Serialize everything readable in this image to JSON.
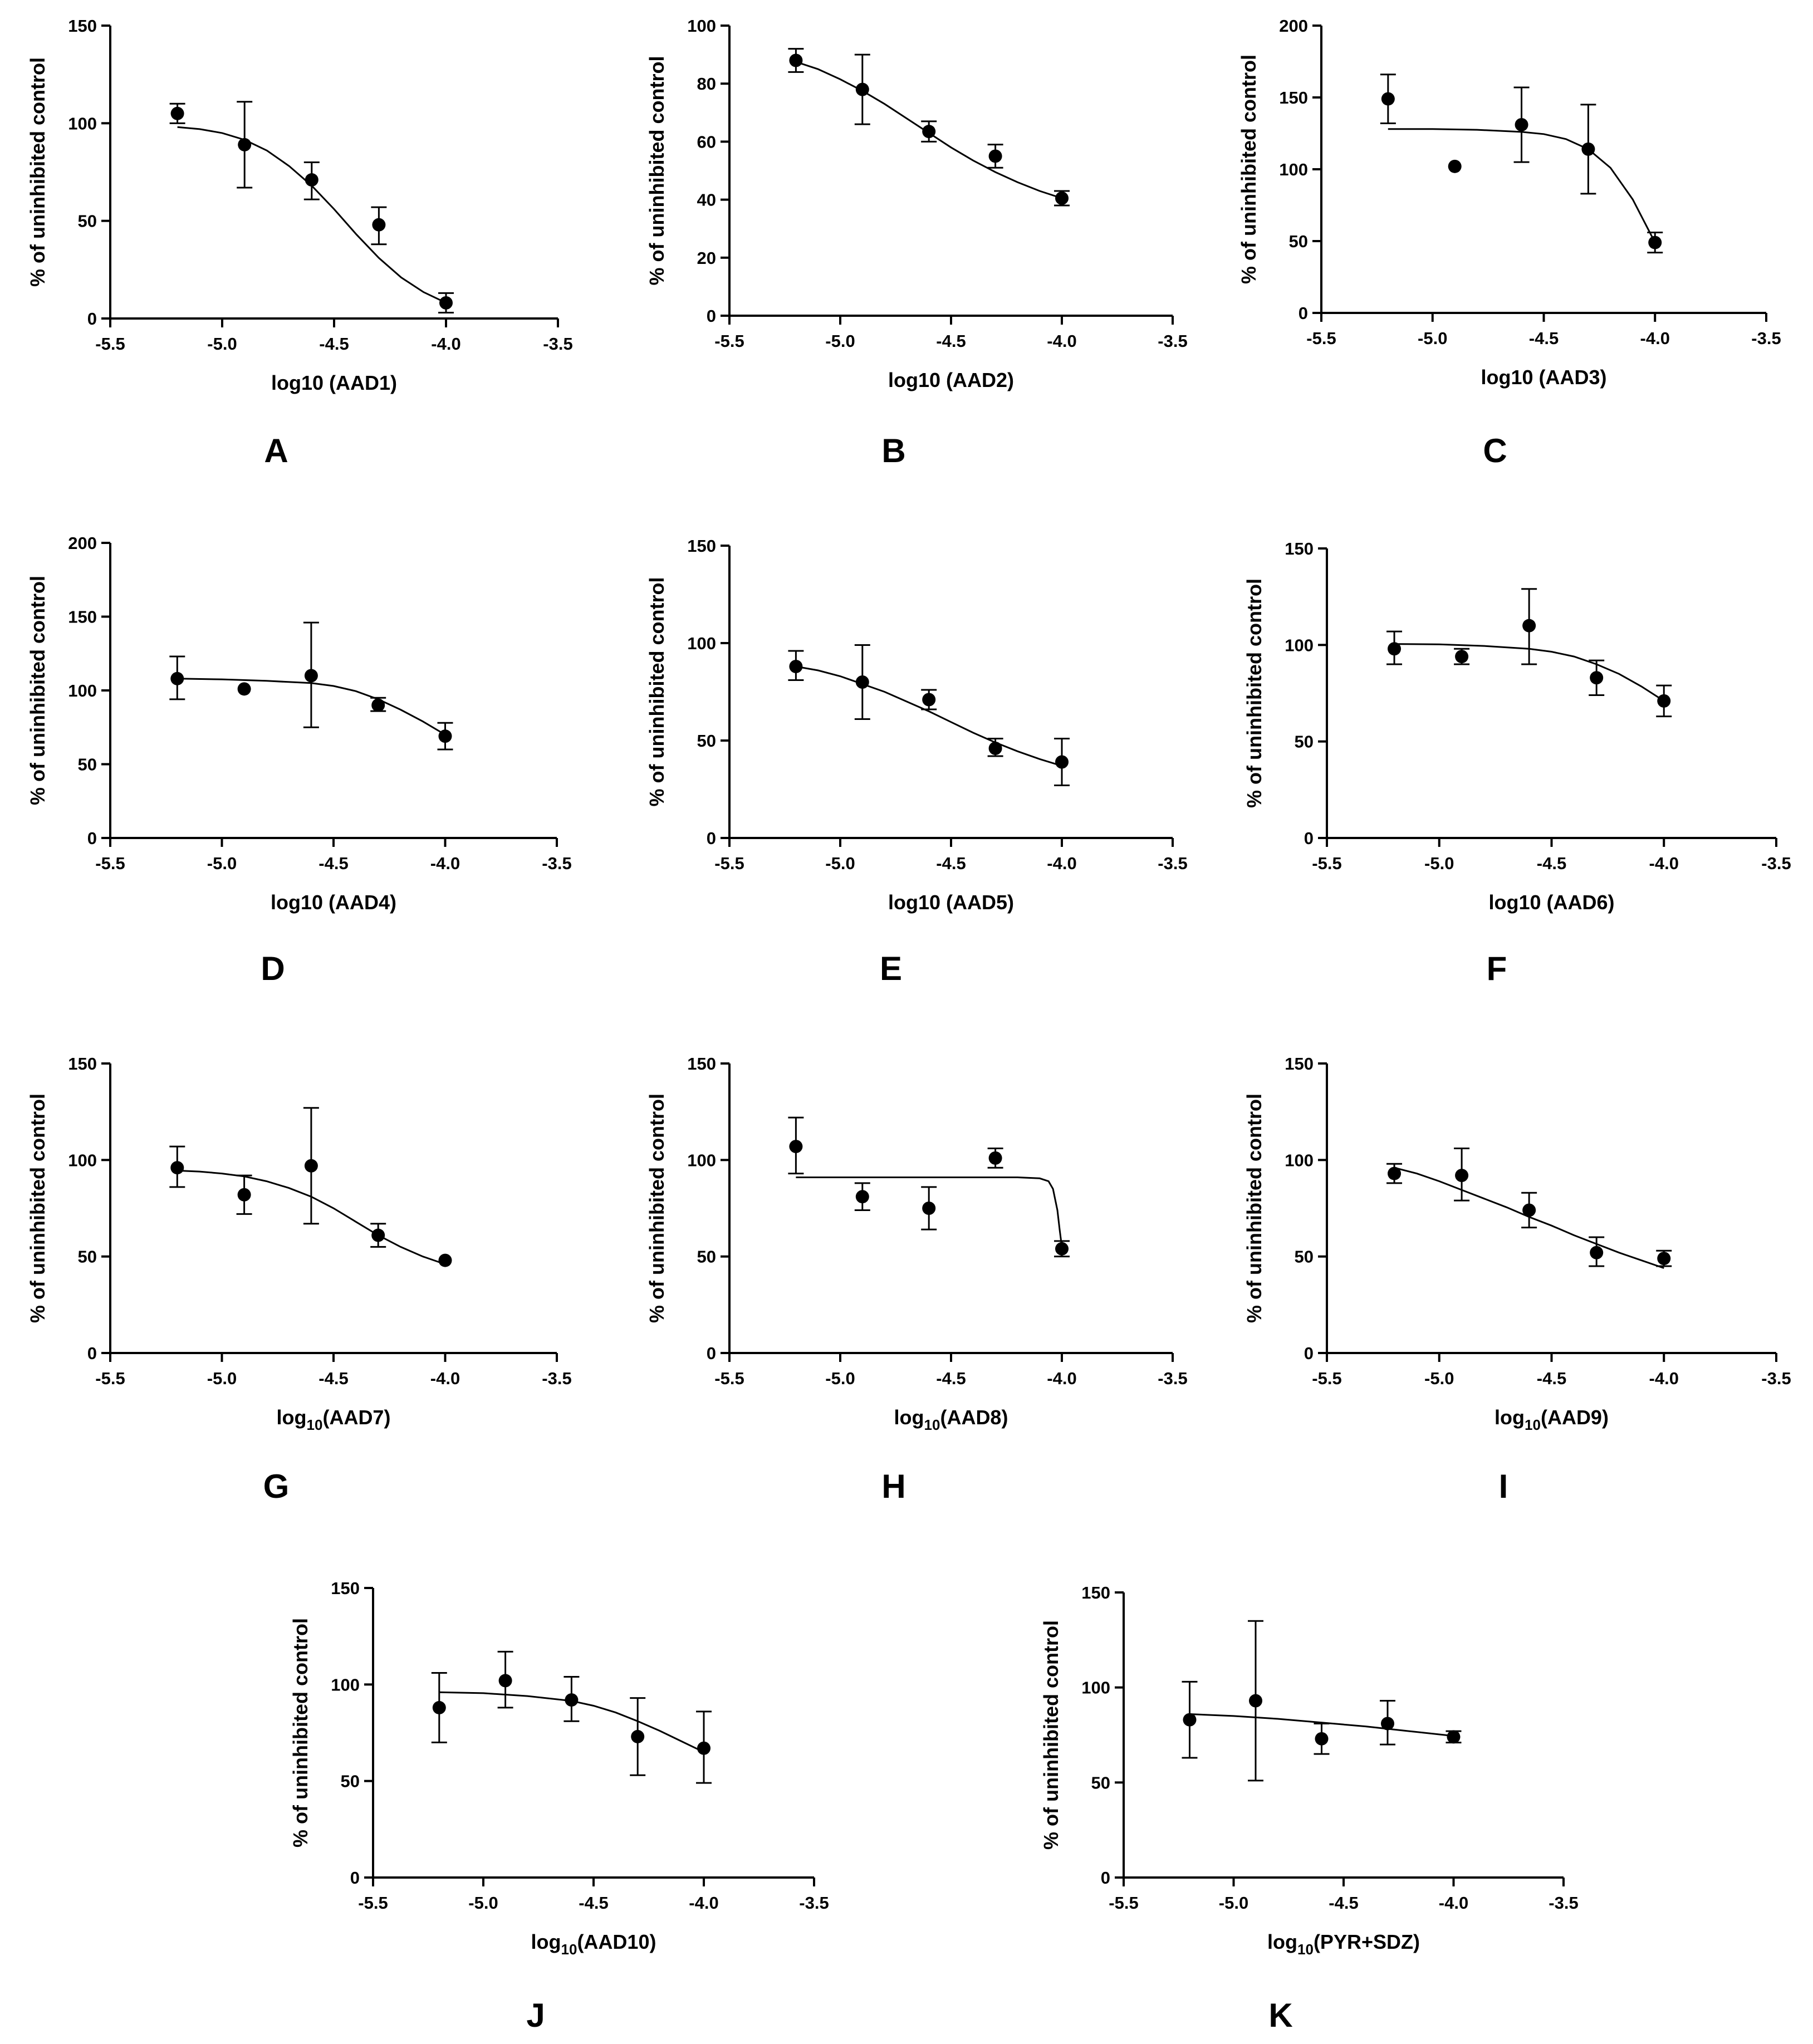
{
  "figure": {
    "panels": [
      "A",
      "B",
      "C",
      "D",
      "E",
      "F",
      "G",
      "H",
      "I",
      "J",
      "K"
    ]
  },
  "chart_data": [
    {
      "type": "scatter",
      "panel": "A",
      "fit": "sigmoidal dose-response curve",
      "xlabel": {
        "main": "log10 (AAD1)",
        "sub": "",
        "after": ""
      },
      "ylabel": "% of uninhibited control",
      "xlim": [
        -5.5,
        -3.5
      ],
      "xticks": [
        "-5.5",
        "-5.0",
        "-4.5",
        "-4.0",
        "-3.5"
      ],
      "ylim": [
        0,
        150
      ],
      "yticks": [
        "0",
        "50",
        "100",
        "150"
      ],
      "points": [
        {
          "x": -5.2,
          "y": 105,
          "lo": 100,
          "hi": 110
        },
        {
          "x": -4.9,
          "y": 89,
          "lo": 67,
          "hi": 111
        },
        {
          "x": -4.6,
          "y": 71,
          "lo": 61,
          "hi": 80
        },
        {
          "x": -4.3,
          "y": 48,
          "lo": 38,
          "hi": 57
        },
        {
          "x": -4.0,
          "y": 8,
          "lo": 3,
          "hi": 13
        }
      ],
      "curve": [
        [
          -5.2,
          98
        ],
        [
          -5.1,
          97
        ],
        [
          -5.0,
          95
        ],
        [
          -4.9,
          91.5
        ],
        [
          -4.8,
          86
        ],
        [
          -4.7,
          78
        ],
        [
          -4.6,
          68
        ],
        [
          -4.5,
          56
        ],
        [
          -4.4,
          43
        ],
        [
          -4.3,
          31
        ],
        [
          -4.2,
          21
        ],
        [
          -4.1,
          13.5
        ],
        [
          -4.0,
          8
        ]
      ]
    },
    {
      "type": "scatter",
      "panel": "B",
      "fit": "sigmoidal dose-response curve",
      "xlabel": {
        "main": "log10 (AAD2)",
        "sub": "",
        "after": ""
      },
      "ylabel": "% of uninhibited control",
      "xlim": [
        -5.5,
        -3.5
      ],
      "xticks": [
        "-5.5",
        "-5.0",
        "-4.5",
        "-4.0",
        "-3.5"
      ],
      "ylim": [
        0,
        100
      ],
      "yticks": [
        "0",
        "20",
        "40",
        "60",
        "80",
        "100"
      ],
      "points": [
        {
          "x": -5.2,
          "y": 88,
          "lo": 84,
          "hi": 92
        },
        {
          "x": -4.9,
          "y": 78,
          "lo": 66,
          "hi": 90
        },
        {
          "x": -4.6,
          "y": 63.5,
          "lo": 60,
          "hi": 67
        },
        {
          "x": -4.3,
          "y": 55,
          "lo": 51,
          "hi": 59
        },
        {
          "x": -4.0,
          "y": 40.5,
          "lo": 38,
          "hi": 43
        }
      ],
      "curve": [
        [
          -5.2,
          87.5
        ],
        [
          -5.1,
          85
        ],
        [
          -5.0,
          81.5
        ],
        [
          -4.9,
          77.5
        ],
        [
          -4.8,
          73
        ],
        [
          -4.7,
          68
        ],
        [
          -4.6,
          63
        ],
        [
          -4.5,
          58
        ],
        [
          -4.4,
          53.5
        ],
        [
          -4.3,
          49.5
        ],
        [
          -4.2,
          46
        ],
        [
          -4.1,
          43
        ],
        [
          -4.0,
          40.5
        ]
      ]
    },
    {
      "type": "scatter",
      "panel": "C",
      "fit": "sigmoidal dose-response curve",
      "xlabel": {
        "main": "log10 (AAD3)",
        "sub": "",
        "after": ""
      },
      "ylabel": "% of uninhibited control",
      "xlim": [
        -5.5,
        -3.5
      ],
      "xticks": [
        "-5.5",
        "-5.0",
        "-4.5",
        "-4.0",
        "-3.5"
      ],
      "ylim": [
        0,
        200
      ],
      "yticks": [
        "0",
        "50",
        "100",
        "150",
        "200"
      ],
      "points": [
        {
          "x": -5.2,
          "y": 149,
          "lo": 132,
          "hi": 166
        },
        {
          "x": -4.9,
          "y": 102,
          "lo": null,
          "hi": null
        },
        {
          "x": -4.6,
          "y": 131,
          "lo": 105,
          "hi": 157
        },
        {
          "x": -4.3,
          "y": 114,
          "lo": 83,
          "hi": 145
        },
        {
          "x": -4.0,
          "y": 49,
          "lo": 42,
          "hi": 56
        }
      ],
      "curve": [
        [
          -5.2,
          128
        ],
        [
          -5.0,
          128
        ],
        [
          -4.8,
          127.5
        ],
        [
          -4.6,
          126
        ],
        [
          -4.5,
          124.5
        ],
        [
          -4.4,
          121
        ],
        [
          -4.3,
          114
        ],
        [
          -4.2,
          101
        ],
        [
          -4.1,
          79
        ],
        [
          -4.05,
          64
        ],
        [
          -4.0,
          49
        ]
      ]
    },
    {
      "type": "scatter",
      "panel": "D",
      "fit": "sigmoidal dose-response curve",
      "xlabel": {
        "main": "log10 (AAD4)",
        "sub": "",
        "after": ""
      },
      "ylabel": "% of uninhibited control",
      "xlim": [
        -5.5,
        -3.5
      ],
      "xticks": [
        "-5.5",
        "-5.0",
        "-4.5",
        "-4.0",
        "-3.5"
      ],
      "ylim": [
        0,
        200
      ],
      "yticks": [
        "0",
        "50",
        "100",
        "150",
        "200"
      ],
      "points": [
        {
          "x": -5.2,
          "y": 108,
          "lo": 94,
          "hi": 123
        },
        {
          "x": -4.9,
          "y": 101,
          "lo": null,
          "hi": null
        },
        {
          "x": -4.6,
          "y": 110,
          "lo": 75,
          "hi": 146
        },
        {
          "x": -4.3,
          "y": 90,
          "lo": 86,
          "hi": 95
        },
        {
          "x": -4.0,
          "y": 69,
          "lo": 60,
          "hi": 78
        }
      ],
      "curve": [
        [
          -5.2,
          108
        ],
        [
          -5.0,
          107.5
        ],
        [
          -4.8,
          106.5
        ],
        [
          -4.6,
          105
        ],
        [
          -4.5,
          103
        ],
        [
          -4.4,
          99.5
        ],
        [
          -4.3,
          94
        ],
        [
          -4.2,
          87
        ],
        [
          -4.1,
          79
        ],
        [
          -4.0,
          70
        ]
      ]
    },
    {
      "type": "scatter",
      "panel": "E",
      "fit": "sigmoidal dose-response curve",
      "xlabel": {
        "main": "log10 (AAD5)",
        "sub": "",
        "after": ""
      },
      "ylabel": "% of uninhibited control",
      "xlim": [
        -5.5,
        -3.5
      ],
      "xticks": [
        "-5.5",
        "-5.0",
        "-4.5",
        "-4.0",
        "-3.5"
      ],
      "ylim": [
        0,
        150
      ],
      "yticks": [
        "0",
        "50",
        "100",
        "150"
      ],
      "points": [
        {
          "x": -5.2,
          "y": 88,
          "lo": 81,
          "hi": 96
        },
        {
          "x": -4.9,
          "y": 80,
          "lo": 61,
          "hi": 99
        },
        {
          "x": -4.6,
          "y": 71,
          "lo": 66,
          "hi": 76
        },
        {
          "x": -4.3,
          "y": 46,
          "lo": 42,
          "hi": 51
        },
        {
          "x": -4.0,
          "y": 39,
          "lo": 27,
          "hi": 51
        }
      ],
      "curve": [
        [
          -5.2,
          88
        ],
        [
          -5.1,
          86
        ],
        [
          -5.0,
          83
        ],
        [
          -4.9,
          79
        ],
        [
          -4.8,
          75
        ],
        [
          -4.7,
          70
        ],
        [
          -4.6,
          65
        ],
        [
          -4.5,
          59.5
        ],
        [
          -4.4,
          54
        ],
        [
          -4.3,
          49
        ],
        [
          -4.2,
          44.5
        ],
        [
          -4.1,
          40.5
        ],
        [
          -4.0,
          37
        ]
      ]
    },
    {
      "type": "scatter",
      "panel": "F",
      "fit": "sigmoidal dose-response curve",
      "xlabel": {
        "main": "log10 (AAD6)",
        "sub": "",
        "after": ""
      },
      "ylabel": "% of uninhibited control",
      "xlim": [
        -5.5,
        -3.5
      ],
      "xticks": [
        "-5.5",
        "-5.0",
        "-4.5",
        "-4.0",
        "-3.5"
      ],
      "ylim": [
        0,
        150
      ],
      "yticks": [
        "0",
        "50",
        "100",
        "150"
      ],
      "points": [
        {
          "x": -5.2,
          "y": 98,
          "lo": 90,
          "hi": 107
        },
        {
          "x": -4.9,
          "y": 94,
          "lo": 90,
          "hi": 98
        },
        {
          "x": -4.6,
          "y": 110,
          "lo": 90,
          "hi": 129
        },
        {
          "x": -4.3,
          "y": 83,
          "lo": 74,
          "hi": 92
        },
        {
          "x": -4.0,
          "y": 71,
          "lo": 63,
          "hi": 79
        }
      ],
      "curve": [
        [
          -5.2,
          100.5
        ],
        [
          -5.0,
          100.3
        ],
        [
          -4.8,
          99.5
        ],
        [
          -4.6,
          98
        ],
        [
          -4.5,
          96.5
        ],
        [
          -4.4,
          94
        ],
        [
          -4.3,
          90
        ],
        [
          -4.2,
          85
        ],
        [
          -4.1,
          78.5
        ],
        [
          -4.0,
          71
        ]
      ]
    },
    {
      "type": "scatter",
      "panel": "G",
      "fit": "sigmoidal dose-response curve",
      "xlabel": {
        "main": "log",
        "sub": "10",
        "after": "(AAD7)"
      },
      "ylabel": "% of uninhibited control",
      "xlim": [
        -5.5,
        -3.5
      ],
      "xticks": [
        "-5.5",
        "-5.0",
        "-4.5",
        "-4.0",
        "-3.5"
      ],
      "ylim": [
        0,
        150
      ],
      "yticks": [
        "0",
        "50",
        "100",
        "150"
      ],
      "points": [
        {
          "x": -5.2,
          "y": 96,
          "lo": 86,
          "hi": 107
        },
        {
          "x": -4.9,
          "y": 82,
          "lo": 72,
          "hi": 92
        },
        {
          "x": -4.6,
          "y": 97,
          "lo": 67,
          "hi": 127
        },
        {
          "x": -4.3,
          "y": 61,
          "lo": 55,
          "hi": 67
        },
        {
          "x": -4.0,
          "y": 48,
          "lo": null,
          "hi": null
        }
      ],
      "curve": [
        [
          -5.2,
          94.5
        ],
        [
          -5.1,
          94
        ],
        [
          -5.0,
          93
        ],
        [
          -4.9,
          91.5
        ],
        [
          -4.8,
          89
        ],
        [
          -4.7,
          85.5
        ],
        [
          -4.6,
          81
        ],
        [
          -4.5,
          75
        ],
        [
          -4.4,
          68
        ],
        [
          -4.3,
          61
        ],
        [
          -4.2,
          55
        ],
        [
          -4.1,
          50
        ],
        [
          -4.0,
          46
        ]
      ]
    },
    {
      "type": "scatter",
      "panel": "H",
      "fit": "sigmoidal dose-response curve",
      "xlabel": {
        "main": "log",
        "sub": "10",
        "after": "(AAD8)"
      },
      "ylabel": "% of uninhibited control",
      "xlim": [
        -5.5,
        -3.5
      ],
      "xticks": [
        "-5.5",
        "-5.0",
        "-4.5",
        "-4.0",
        "-3.5"
      ],
      "ylim": [
        0,
        150
      ],
      "yticks": [
        "0",
        "50",
        "100",
        "150"
      ],
      "points": [
        {
          "x": -5.2,
          "y": 107,
          "lo": 93,
          "hi": 122
        },
        {
          "x": -4.9,
          "y": 81,
          "lo": 74,
          "hi": 88
        },
        {
          "x": -4.6,
          "y": 75,
          "lo": 64,
          "hi": 86
        },
        {
          "x": -4.3,
          "y": 101,
          "lo": 96,
          "hi": 106
        },
        {
          "x": -4.0,
          "y": 54,
          "lo": 50,
          "hi": 58
        }
      ],
      "curve": [
        [
          -5.2,
          91
        ],
        [
          -4.6,
          91
        ],
        [
          -4.2,
          91
        ],
        [
          -4.1,
          90.5
        ],
        [
          -4.06,
          89
        ],
        [
          -4.04,
          85
        ],
        [
          -4.02,
          74
        ],
        [
          -4.01,
          64
        ],
        [
          -4.0,
          55
        ]
      ]
    },
    {
      "type": "scatter",
      "panel": "I",
      "fit": "sigmoidal dose-response curve",
      "xlabel": {
        "main": "log",
        "sub": "10",
        "after": "(AAD9)"
      },
      "ylabel": "% of uninhibited control",
      "xlim": [
        -5.5,
        -3.5
      ],
      "xticks": [
        "-5.5",
        "-5.0",
        "-4.5",
        "-4.0",
        "-3.5"
      ],
      "ylim": [
        0,
        150
      ],
      "yticks": [
        "0",
        "50",
        "100",
        "150"
      ],
      "points": [
        {
          "x": -5.2,
          "y": 93,
          "lo": 88,
          "hi": 98
        },
        {
          "x": -4.9,
          "y": 92,
          "lo": 79,
          "hi": 106
        },
        {
          "x": -4.6,
          "y": 74,
          "lo": 65,
          "hi": 83
        },
        {
          "x": -4.3,
          "y": 52,
          "lo": 45,
          "hi": 60
        },
        {
          "x": -4.0,
          "y": 49,
          "lo": 45,
          "hi": 53
        }
      ],
      "curve": [
        [
          -5.2,
          96
        ],
        [
          -5.1,
          93
        ],
        [
          -5.0,
          89
        ],
        [
          -4.9,
          84.5
        ],
        [
          -4.8,
          80
        ],
        [
          -4.7,
          75.5
        ],
        [
          -4.6,
          70.5
        ],
        [
          -4.5,
          66
        ],
        [
          -4.4,
          61
        ],
        [
          -4.3,
          56.5
        ],
        [
          -4.2,
          52
        ],
        [
          -4.1,
          48
        ],
        [
          -4.0,
          44
        ]
      ]
    },
    {
      "type": "scatter",
      "panel": "J",
      "fit": "sigmoidal dose-response curve",
      "xlabel": {
        "main": "log",
        "sub": "10",
        "after": "(AAD10)"
      },
      "ylabel": "% of uninhibited control",
      "xlim": [
        -5.5,
        -3.5
      ],
      "xticks": [
        "-5.5",
        "-5.0",
        "-4.5",
        "-4.0",
        "-3.5"
      ],
      "ylim": [
        0,
        150
      ],
      "yticks": [
        "0",
        "50",
        "100",
        "150"
      ],
      "points": [
        {
          "x": -5.2,
          "y": 88,
          "lo": 70,
          "hi": 106
        },
        {
          "x": -4.9,
          "y": 102,
          "lo": 88,
          "hi": 117
        },
        {
          "x": -4.6,
          "y": 92,
          "lo": 81,
          "hi": 104
        },
        {
          "x": -4.3,
          "y": 73,
          "lo": 53,
          "hi": 93
        },
        {
          "x": -4.0,
          "y": 67,
          "lo": 49,
          "hi": 86
        }
      ],
      "curve": [
        [
          -5.2,
          96
        ],
        [
          -5.0,
          95.5
        ],
        [
          -4.8,
          94
        ],
        [
          -4.6,
          91.5
        ],
        [
          -4.5,
          89
        ],
        [
          -4.4,
          85.5
        ],
        [
          -4.3,
          81
        ],
        [
          -4.2,
          76
        ],
        [
          -4.1,
          70.5
        ],
        [
          -4.0,
          65
        ]
      ]
    },
    {
      "type": "scatter",
      "panel": "K",
      "fit": "sigmoidal dose-response curve",
      "xlabel": {
        "main": "log",
        "sub": "10",
        "after": "(PYR+SDZ)"
      },
      "ylabel": "% of uninhibited control",
      "xlim": [
        -5.5,
        -3.5
      ],
      "xticks": [
        "-5.5",
        "-5.0",
        "-4.5",
        "-4.0",
        "-3.5"
      ],
      "ylim": [
        0,
        150
      ],
      "yticks": [
        "0",
        "50",
        "100",
        "150"
      ],
      "points": [
        {
          "x": -5.2,
          "y": 83,
          "lo": 63,
          "hi": 103
        },
        {
          "x": -4.9,
          "y": 93,
          "lo": 51,
          "hi": 135
        },
        {
          "x": -4.6,
          "y": 73,
          "lo": 65,
          "hi": 81
        },
        {
          "x": -4.3,
          "y": 81,
          "lo": 70,
          "hi": 93
        },
        {
          "x": -4.0,
          "y": 74,
          "lo": 71,
          "hi": 77
        }
      ],
      "curve": [
        [
          -5.2,
          86
        ],
        [
          -5.0,
          85
        ],
        [
          -4.8,
          83.5
        ],
        [
          -4.6,
          81.5
        ],
        [
          -4.4,
          79.5
        ],
        [
          -4.2,
          77
        ],
        [
          -4.0,
          74.5
        ]
      ]
    }
  ]
}
